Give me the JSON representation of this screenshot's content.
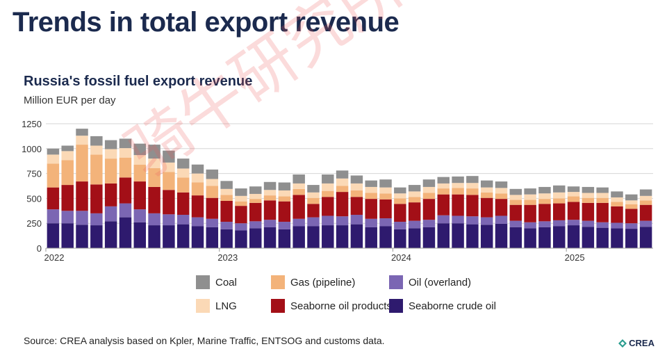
{
  "headline": "Trends in total export revenue",
  "watermark": "骑牛研究所",
  "chart_data": {
    "type": "bar",
    "stacked": true,
    "title": "Russia's fossil fuel export revenue",
    "subtitle": "Million EUR per day",
    "ylim": [
      0,
      1250
    ],
    "yticks": [
      0,
      250,
      500,
      750,
      1000,
      1250
    ],
    "grid": true,
    "legend_position": "bottom",
    "x_tick_labels": [
      "2022",
      "2023",
      "2024",
      "2025"
    ],
    "categories": [
      "2022-01",
      "2022-02",
      "2022-03",
      "2022-04",
      "2022-05",
      "2022-06",
      "2022-07",
      "2022-08",
      "2022-09",
      "2022-10",
      "2022-11",
      "2022-12",
      "2023-01",
      "2023-02",
      "2023-03",
      "2023-04",
      "2023-05",
      "2023-06",
      "2023-07",
      "2023-08",
      "2023-09",
      "2023-10",
      "2023-11",
      "2023-12",
      "2024-01",
      "2024-02",
      "2024-03",
      "2024-04",
      "2024-05",
      "2024-06",
      "2024-07",
      "2024-08",
      "2024-09",
      "2024-10",
      "2024-11",
      "2024-12",
      "2025-01",
      "2025-02",
      "2025-03",
      "2025-04",
      "2025-05",
      "2025-06"
    ],
    "series": [
      {
        "name": "Seaborne crude oil",
        "color": "#2e1a6e",
        "values": [
          250,
          250,
          235,
          230,
          270,
          310,
          260,
          230,
          230,
          240,
          220,
          210,
          190,
          180,
          200,
          210,
          190,
          220,
          220,
          230,
          230,
          240,
          210,
          220,
          190,
          200,
          210,
          250,
          250,
          240,
          235,
          245,
          210,
          200,
          210,
          220,
          230,
          215,
          205,
          200,
          195,
          215
        ]
      },
      {
        "name": "Oil (overland)",
        "color": "#7b66b3",
        "values": [
          140,
          125,
          140,
          120,
          150,
          140,
          130,
          120,
          110,
          95,
          90,
          85,
          75,
          70,
          70,
          75,
          75,
          75,
          90,
          95,
          90,
          95,
          85,
          80,
          75,
          75,
          75,
          80,
          75,
          80,
          75,
          80,
          65,
          60,
          60,
          60,
          55,
          60,
          55,
          55,
          55,
          60
        ]
      },
      {
        "name": "Seaborne oil products",
        "color": "#a30f17",
        "values": [
          220,
          260,
          295,
          290,
          230,
          260,
          280,
          265,
          245,
          225,
          220,
          210,
          210,
          175,
          185,
          195,
          205,
          240,
          135,
          190,
          245,
          180,
          200,
          190,
          180,
          185,
          210,
          210,
          215,
          215,
          195,
          170,
          160,
          175,
          175,
          170,
          180,
          180,
          195,
          165,
          145,
          160
        ]
      },
      {
        "name": "Gas (pipeline)",
        "color": "#f3b37a",
        "values": [
          240,
          250,
          370,
          300,
          250,
          200,
          170,
          190,
          180,
          150,
          130,
          120,
          60,
          45,
          40,
          50,
          50,
          60,
          60,
          60,
          60,
          65,
          60,
          60,
          55,
          55,
          60,
          60,
          65,
          65,
          55,
          55,
          50,
          50,
          50,
          50,
          55,
          50,
          50,
          45,
          45,
          45
        ]
      },
      {
        "name": "LNG",
        "color": "#fbd9b6",
        "values": [
          90,
          90,
          90,
          90,
          95,
          95,
          95,
          95,
          95,
          90,
          90,
          70,
          60,
          55,
          50,
          55,
          60,
          55,
          55,
          75,
          75,
          70,
          60,
          60,
          50,
          55,
          60,
          50,
          50,
          55,
          50,
          55,
          50,
          55,
          55,
          60,
          45,
          50,
          50,
          45,
          40,
          45
        ]
      },
      {
        "name": "Coal",
        "color": "#8f8f8f",
        "values": [
          60,
          55,
          70,
          95,
          90,
          95,
          115,
          140,
          120,
          100,
          90,
          95,
          80,
          75,
          75,
          80,
          80,
          90,
          75,
          90,
          80,
          80,
          65,
          80,
          60,
          65,
          75,
          65,
          65,
          70,
          70,
          65,
          60,
          60,
          65,
          70,
          55,
          60,
          55,
          60,
          60,
          65
        ]
      }
    ],
    "legend_order": [
      "Coal",
      "Gas (pipeline)",
      "Oil (overland)",
      "LNG",
      "Seaborne oil products",
      "Seaborne crude oil"
    ]
  },
  "source": "Source: CREA analysis based on Kpler, Marine Traffic, ENTSOG and customs data.",
  "logo": {
    "text": "CREA"
  }
}
